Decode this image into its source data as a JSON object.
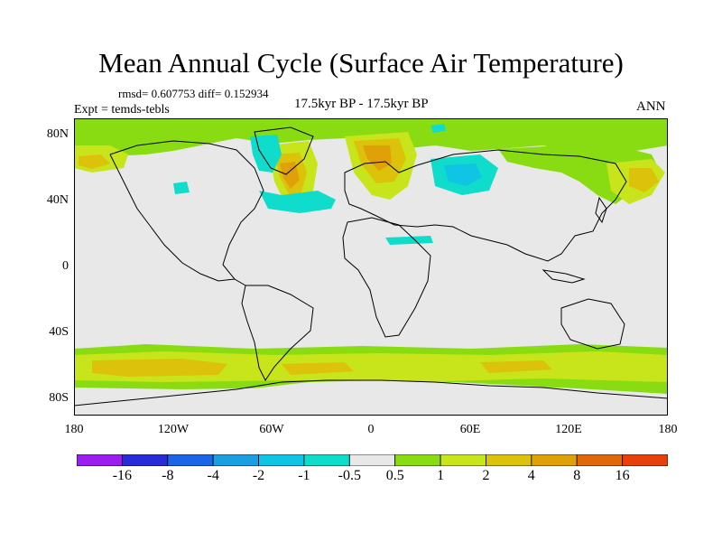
{
  "title": "Mean Annual Cycle (Surface Air Temperature)",
  "stats": "rmsd= 0.607753 diff= 0.152934",
  "experiment": "Expt = temds-tebls",
  "period": "17.5kyr BP - 17.5kyr BP",
  "season": "ANN",
  "lat_labels": [
    "80N",
    "40N",
    "0",
    "40S",
    "80S"
  ],
  "lon_labels": [
    "180",
    "120W",
    "60W",
    "0",
    "60E",
    "120E",
    "180"
  ],
  "colorbar": {
    "colors": [
      "#9b1df0",
      "#2a2bd8",
      "#1a66e6",
      "#1a9fe0",
      "#10c4e4",
      "#10dccc",
      "#e8e8e8",
      "#8adc12",
      "#c8e41a",
      "#dcc20a",
      "#e0a008",
      "#e06808",
      "#e8400a"
    ],
    "labels": [
      "-16",
      "-8",
      "-4",
      "-2",
      "-1",
      "-0.5",
      "0.5",
      "1",
      "2",
      "4",
      "8",
      "16"
    ]
  },
  "background_color": "#e8e8e8"
}
